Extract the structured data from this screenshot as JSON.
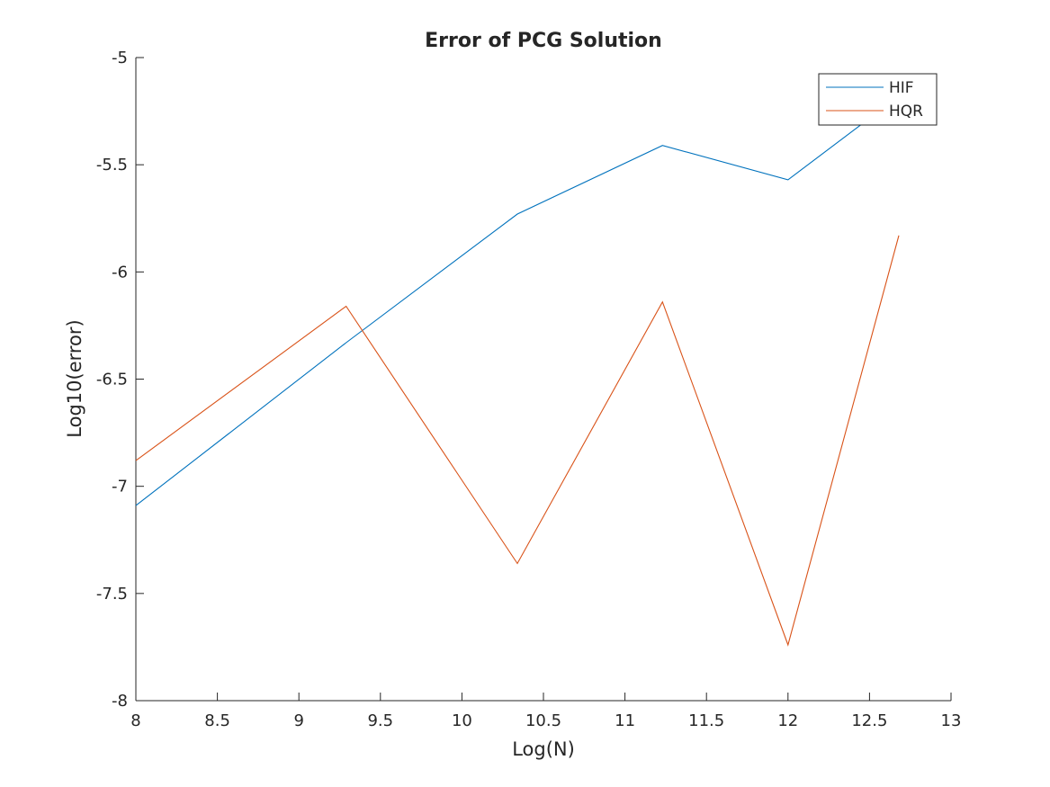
{
  "chart_data": {
    "type": "line",
    "title": "Error of PCG Solution",
    "xlabel": "Log(N)",
    "ylabel": "Log10(error)",
    "xlim": [
      8,
      13
    ],
    "ylim": [
      -8,
      -5
    ],
    "xticks": [
      "8",
      "8.5",
      "9",
      "9.5",
      "10",
      "10.5",
      "11",
      "11.5",
      "12",
      "12.5",
      "13"
    ],
    "yticks": [
      "-5",
      "-5.5",
      "-6",
      "-6.5",
      "-7",
      "-7.5",
      "-8"
    ],
    "grid": false,
    "legend_position": "top-right",
    "series": [
      {
        "name": "HIF",
        "color": "#0072BD",
        "x": [
          8,
          9.29,
          10.34,
          11.23,
          12.0,
          12.68
        ],
        "y": [
          -7.09,
          -6.33,
          -5.73,
          -5.41,
          -5.57,
          -5.18
        ]
      },
      {
        "name": "HQR",
        "color": "#D95319",
        "x": [
          8,
          9.29,
          10.34,
          11.23,
          12.0,
          12.68
        ],
        "y": [
          -6.88,
          -6.16,
          -7.36,
          -6.14,
          -7.74,
          -5.83
        ]
      }
    ]
  }
}
